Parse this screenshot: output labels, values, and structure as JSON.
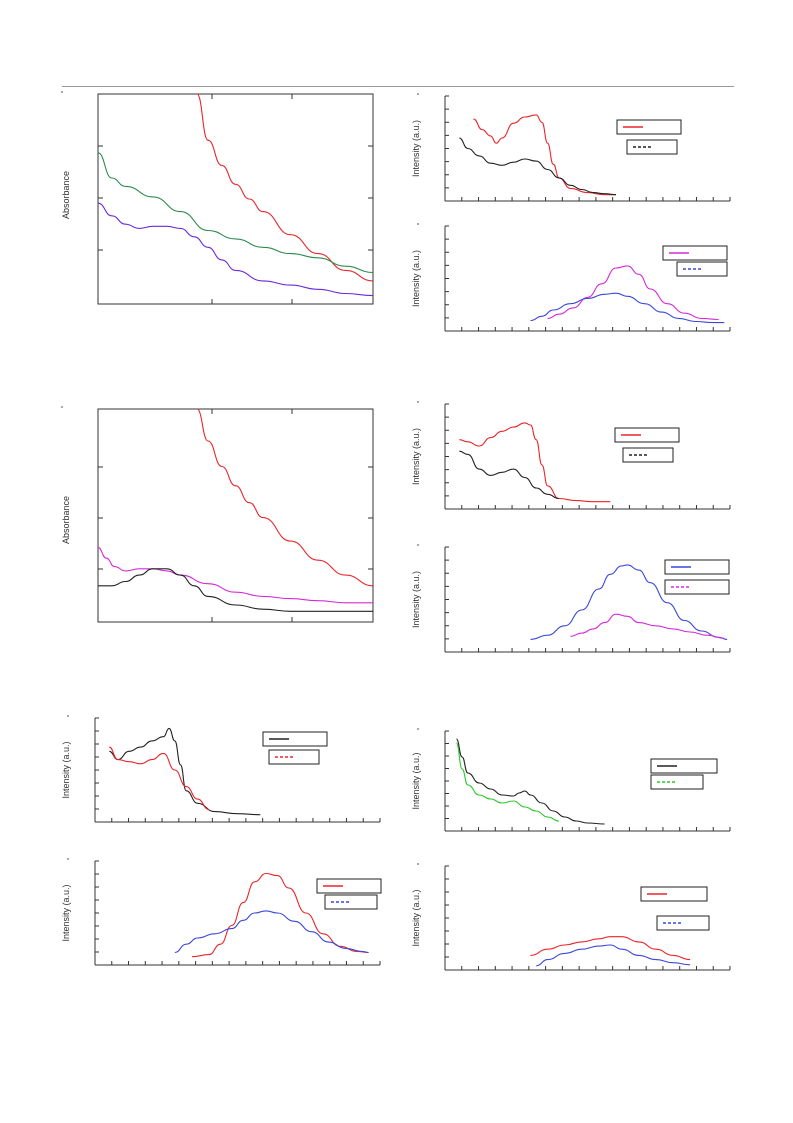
{
  "chart_data": [
    {
      "type": "line",
      "ylabel": "Absorbance",
      "x": [
        0,
        0.1,
        0.2,
        0.3,
        0.4,
        0.5,
        0.6,
        0.7,
        0.8,
        0.9,
        1.0
      ],
      "xlim": [
        0,
        1
      ],
      "ylim": [
        0,
        1
      ],
      "series": [
        {
          "color": "#e8262a",
          "x": [
            0.36,
            0.4,
            0.45,
            0.5,
            0.55,
            0.6,
            0.7,
            0.8,
            0.9,
            1.0
          ],
          "values": [
            1.0,
            0.78,
            0.66,
            0.57,
            0.5,
            0.44,
            0.33,
            0.24,
            0.16,
            0.11
          ]
        },
        {
          "color": "#2d8a4e",
          "x": [
            0.0,
            0.05,
            0.1,
            0.2,
            0.3,
            0.4,
            0.5,
            0.6,
            0.7,
            0.8,
            0.9,
            1.0
          ],
          "values": [
            0.72,
            0.6,
            0.56,
            0.51,
            0.44,
            0.35,
            0.31,
            0.27,
            0.24,
            0.22,
            0.18,
            0.15
          ]
        },
        {
          "color": "#6a2ad8",
          "x": [
            0.0,
            0.05,
            0.1,
            0.15,
            0.2,
            0.25,
            0.3,
            0.35,
            0.4,
            0.45,
            0.5,
            0.6,
            0.7,
            0.8,
            0.9,
            1.0
          ],
          "values": [
            0.48,
            0.42,
            0.38,
            0.36,
            0.37,
            0.37,
            0.36,
            0.32,
            0.27,
            0.21,
            0.16,
            0.11,
            0.09,
            0.07,
            0.05,
            0.04
          ]
        }
      ]
    },
    {
      "type": "line",
      "ylabel": "Intensity (a.u.)",
      "xlim": [
        0,
        1
      ],
      "ylim": [
        0,
        1
      ],
      "legend": "top-right",
      "series": [
        {
          "color": "#e8262a",
          "dash": false,
          "x": [
            0.1,
            0.13,
            0.16,
            0.18,
            0.2,
            0.24,
            0.28,
            0.32,
            0.34,
            0.36,
            0.38,
            0.4,
            0.44,
            0.5,
            0.56,
            0.6
          ],
          "values": [
            0.78,
            0.68,
            0.62,
            0.55,
            0.6,
            0.74,
            0.8,
            0.82,
            0.75,
            0.55,
            0.35,
            0.22,
            0.12,
            0.08,
            0.06,
            0.06
          ]
        },
        {
          "color": "#222222",
          "dash": false,
          "x": [
            0.05,
            0.08,
            0.12,
            0.16,
            0.2,
            0.24,
            0.28,
            0.32,
            0.36,
            0.4,
            0.44,
            0.48,
            0.52,
            0.56,
            0.6
          ],
          "values": [
            0.6,
            0.5,
            0.43,
            0.36,
            0.34,
            0.37,
            0.4,
            0.38,
            0.3,
            0.22,
            0.15,
            0.11,
            0.08,
            0.07,
            0.06
          ]
        }
      ]
    },
    {
      "type": "line",
      "ylabel": "Intensity (a.u.)",
      "xlim": [
        0,
        1
      ],
      "ylim": [
        0,
        1
      ],
      "legend": "top-right",
      "series": [
        {
          "color": "#d62ad8",
          "dash": false,
          "x": [
            0.36,
            0.4,
            0.45,
            0.5,
            0.55,
            0.6,
            0.64,
            0.68,
            0.72,
            0.78,
            0.84,
            0.9,
            0.96
          ],
          "values": [
            0.12,
            0.16,
            0.22,
            0.32,
            0.45,
            0.6,
            0.62,
            0.54,
            0.4,
            0.26,
            0.17,
            0.12,
            0.11
          ]
        },
        {
          "color": "#3a48d8",
          "dash": false,
          "x": [
            0.3,
            0.34,
            0.38,
            0.44,
            0.5,
            0.56,
            0.6,
            0.64,
            0.7,
            0.76,
            0.82,
            0.88,
            0.94,
            0.98
          ],
          "values": [
            0.1,
            0.14,
            0.2,
            0.26,
            0.31,
            0.35,
            0.36,
            0.33,
            0.26,
            0.18,
            0.12,
            0.09,
            0.08,
            0.08
          ]
        }
      ]
    },
    {
      "type": "line",
      "ylabel": "Absorbance",
      "xlim": [
        0,
        1
      ],
      "ylim": [
        0,
        1
      ],
      "series": [
        {
          "color": "#e8262a",
          "x": [
            0.36,
            0.4,
            0.45,
            0.5,
            0.55,
            0.6,
            0.7,
            0.8,
            0.9,
            1.0
          ],
          "values": [
            1.0,
            0.85,
            0.73,
            0.64,
            0.56,
            0.49,
            0.38,
            0.29,
            0.22,
            0.17
          ]
        },
        {
          "color": "#d62ad8",
          "x": [
            0.0,
            0.03,
            0.06,
            0.1,
            0.15,
            0.2,
            0.25,
            0.3,
            0.4,
            0.5,
            0.6,
            0.7,
            0.8,
            0.9,
            1.0
          ],
          "values": [
            0.35,
            0.3,
            0.26,
            0.24,
            0.25,
            0.25,
            0.24,
            0.22,
            0.18,
            0.14,
            0.12,
            0.11,
            0.1,
            0.09,
            0.09
          ]
        },
        {
          "color": "#222222",
          "x": [
            0.0,
            0.05,
            0.1,
            0.15,
            0.2,
            0.25,
            0.3,
            0.35,
            0.4,
            0.5,
            0.6,
            0.7,
            0.8,
            0.9,
            1.0
          ],
          "values": [
            0.17,
            0.17,
            0.19,
            0.22,
            0.25,
            0.25,
            0.22,
            0.17,
            0.12,
            0.08,
            0.06,
            0.05,
            0.05,
            0.05,
            0.05
          ]
        }
      ]
    },
    {
      "type": "line",
      "ylabel": "Intensity (a.u.)",
      "xlim": [
        0,
        1
      ],
      "ylim": [
        0,
        1
      ],
      "legend": "top-right",
      "series": [
        {
          "color": "#e8262a",
          "dash": false,
          "x": [
            0.05,
            0.08,
            0.12,
            0.16,
            0.2,
            0.24,
            0.28,
            0.3,
            0.32,
            0.34,
            0.36,
            0.4,
            0.46,
            0.52,
            0.58
          ],
          "values": [
            0.66,
            0.64,
            0.6,
            0.68,
            0.74,
            0.78,
            0.82,
            0.8,
            0.66,
            0.42,
            0.22,
            0.1,
            0.08,
            0.07,
            0.07
          ]
        },
        {
          "color": "#222222",
          "dash": false,
          "x": [
            0.05,
            0.08,
            0.12,
            0.16,
            0.2,
            0.24,
            0.28,
            0.32,
            0.36,
            0.4
          ],
          "values": [
            0.55,
            0.52,
            0.38,
            0.32,
            0.35,
            0.38,
            0.3,
            0.2,
            0.14,
            0.1
          ]
        }
      ]
    },
    {
      "type": "line",
      "ylabel": "Intensity (a.u.)",
      "xlim": [
        0,
        1
      ],
      "ylim": [
        0,
        1
      ],
      "legend": "top-right",
      "series": [
        {
          "color": "#3a48d8",
          "dash": false,
          "x": [
            0.3,
            0.36,
            0.42,
            0.48,
            0.54,
            0.58,
            0.62,
            0.64,
            0.68,
            0.72,
            0.78,
            0.84,
            0.9,
            0.96,
            0.99
          ],
          "values": [
            0.12,
            0.16,
            0.25,
            0.4,
            0.6,
            0.74,
            0.82,
            0.83,
            0.78,
            0.66,
            0.47,
            0.3,
            0.2,
            0.14,
            0.12
          ]
        },
        {
          "color": "#d62ad8",
          "dash": false,
          "x": [
            0.44,
            0.48,
            0.52,
            0.56,
            0.6,
            0.64,
            0.68,
            0.74,
            0.8,
            0.86,
            0.92,
            0.98
          ],
          "values": [
            0.15,
            0.18,
            0.22,
            0.28,
            0.36,
            0.34,
            0.28,
            0.25,
            0.22,
            0.19,
            0.16,
            0.13
          ]
        }
      ]
    },
    {
      "type": "line",
      "ylabel": "Intensity (a.u.)",
      "xlim": [
        0,
        1
      ],
      "ylim": [
        0,
        1
      ],
      "legend": "top-right",
      "series": [
        {
          "color": "#222222",
          "dash": false,
          "x": [
            0.05,
            0.08,
            0.12,
            0.16,
            0.2,
            0.24,
            0.26,
            0.28,
            0.3,
            0.32,
            0.36,
            0.42,
            0.5,
            0.58
          ],
          "values": [
            0.68,
            0.6,
            0.68,
            0.72,
            0.78,
            0.82,
            0.9,
            0.78,
            0.55,
            0.3,
            0.18,
            0.1,
            0.08,
            0.07
          ]
        },
        {
          "color": "#e8262a",
          "dash": false,
          "x": [
            0.05,
            0.08,
            0.12,
            0.16,
            0.2,
            0.24,
            0.28,
            0.32,
            0.36,
            0.4
          ],
          "values": [
            0.72,
            0.6,
            0.58,
            0.56,
            0.6,
            0.66,
            0.5,
            0.34,
            0.22,
            0.12
          ]
        }
      ]
    },
    {
      "type": "line",
      "ylabel": "Intensity (a.u.)",
      "xlim": [
        0,
        1
      ],
      "ylim": [
        0,
        1
      ],
      "legend": "top-right",
      "series": [
        {
          "color": "#222222",
          "dash": false,
          "x": [
            0.04,
            0.06,
            0.08,
            0.12,
            0.16,
            0.2,
            0.24,
            0.26,
            0.28,
            0.3,
            0.34,
            0.38,
            0.42,
            0.46,
            0.5,
            0.56
          ],
          "values": [
            0.92,
            0.74,
            0.58,
            0.48,
            0.42,
            0.36,
            0.35,
            0.38,
            0.4,
            0.36,
            0.28,
            0.2,
            0.14,
            0.1,
            0.08,
            0.07
          ]
        },
        {
          "color": "#2cc82c",
          "dash": false,
          "x": [
            0.04,
            0.06,
            0.08,
            0.12,
            0.16,
            0.2,
            0.24,
            0.28,
            0.32,
            0.36,
            0.4
          ],
          "values": [
            0.88,
            0.62,
            0.46,
            0.36,
            0.32,
            0.28,
            0.3,
            0.24,
            0.2,
            0.14,
            0.1
          ]
        }
      ]
    },
    {
      "type": "line",
      "ylabel": "Intensity (a.u.)",
      "xlim": [
        0,
        1
      ],
      "ylim": [
        0,
        1
      ],
      "legend": "top-right",
      "series": [
        {
          "color": "#e8262a",
          "dash": false,
          "x": [
            0.34,
            0.4,
            0.44,
            0.48,
            0.52,
            0.56,
            0.6,
            0.64,
            0.68,
            0.74,
            0.8,
            0.86,
            0.92,
            0.96
          ],
          "values": [
            0.08,
            0.1,
            0.2,
            0.38,
            0.6,
            0.8,
            0.88,
            0.86,
            0.74,
            0.5,
            0.3,
            0.18,
            0.13,
            0.12
          ]
        },
        {
          "color": "#3a48d8",
          "dash": false,
          "x": [
            0.28,
            0.32,
            0.36,
            0.42,
            0.48,
            0.52,
            0.56,
            0.6,
            0.64,
            0.7,
            0.76,
            0.82,
            0.88,
            0.94,
            0.96
          ],
          "values": [
            0.12,
            0.2,
            0.26,
            0.3,
            0.35,
            0.43,
            0.5,
            0.52,
            0.5,
            0.42,
            0.32,
            0.22,
            0.16,
            0.13,
            0.12
          ]
        }
      ]
    },
    {
      "type": "line",
      "ylabel": "Intensity (a.u.)",
      "xlim": [
        0,
        1
      ],
      "ylim": [
        0,
        1
      ],
      "legend": "top-right",
      "series": [
        {
          "color": "#e8262a",
          "dash": false,
          "x": [
            0.3,
            0.36,
            0.42,
            0.48,
            0.54,
            0.58,
            0.62,
            0.68,
            0.74,
            0.8,
            0.86
          ],
          "values": [
            0.14,
            0.2,
            0.24,
            0.27,
            0.3,
            0.32,
            0.32,
            0.27,
            0.2,
            0.14,
            0.1
          ]
        },
        {
          "color": "#3a48d8",
          "dash": false,
          "x": [
            0.32,
            0.36,
            0.42,
            0.48,
            0.54,
            0.58,
            0.62,
            0.68,
            0.74,
            0.8,
            0.86
          ],
          "values": [
            0.04,
            0.1,
            0.16,
            0.2,
            0.23,
            0.24,
            0.2,
            0.14,
            0.1,
            0.07,
            0.05
          ]
        }
      ]
    }
  ]
}
